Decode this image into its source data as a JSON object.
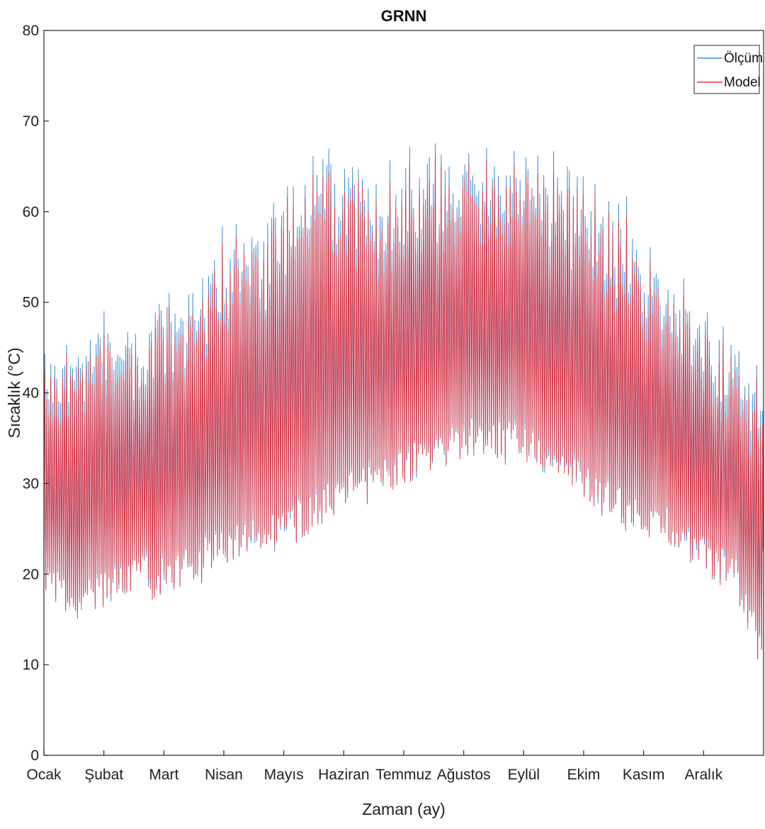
{
  "chart_data": {
    "type": "line",
    "title": "GRNN",
    "xlabel": "Zaman (ay)",
    "ylabel": "Sıcaklık (°C)",
    "ylim": [
      0,
      80
    ],
    "yticks": [
      0,
      10,
      20,
      30,
      40,
      50,
      60,
      70,
      80
    ],
    "xlim_months": [
      0,
      12
    ],
    "xticks": [
      "Ocak",
      "Şubat",
      "Mart",
      "Nisan",
      "Mayıs",
      "Haziran",
      "Temmuz",
      "Ağustos",
      "Eylül",
      "Ekim",
      "Kasım",
      "Aralık"
    ],
    "grid": false,
    "legend": "top-right",
    "sampling": "daily envelope (daily minimum and maximum), month 0 = 1 Ocak",
    "series": [
      {
        "name": "Ölçüm",
        "color": "#3d8fd6",
        "x_month": [
          0,
          0.5,
          1,
          1.5,
          2,
          2.5,
          3,
          3.5,
          4,
          4.5,
          5,
          5.5,
          6,
          6.5,
          7,
          7.5,
          8,
          8.5,
          9,
          9.5,
          10,
          10.5,
          11,
          11.5,
          12
        ],
        "daily_max": [
          46,
          45,
          50,
          47,
          52,
          53,
          58,
          60,
          64,
          68,
          67,
          65,
          66,
          67,
          67,
          67,
          66,
          66,
          64,
          62,
          58,
          52,
          48,
          47,
          43
        ],
        "daily_min": [
          19,
          17,
          18,
          20,
          20,
          21,
          23,
          24,
          25,
          27,
          29,
          30,
          32,
          34,
          35,
          35,
          34,
          32,
          30,
          28,
          26,
          25,
          22,
          20,
          11
        ]
      },
      {
        "name": "Model",
        "color": "#e8313b",
        "x_month": [
          0,
          0.5,
          1,
          1.5,
          2,
          2.5,
          3,
          3.5,
          4,
          4.5,
          5,
          5.5,
          6,
          6.5,
          7,
          7.5,
          8,
          8.5,
          9,
          9.5,
          10,
          10.5,
          11,
          11.5,
          12
        ],
        "daily_max": [
          45,
          44,
          49,
          46,
          51,
          52,
          57,
          59,
          63,
          67,
          66,
          64,
          65,
          66,
          66,
          66,
          65,
          65,
          63,
          61,
          57,
          51,
          47,
          46,
          42
        ],
        "daily_min": [
          19,
          17,
          18,
          20,
          20,
          21,
          23,
          24,
          25,
          27,
          29,
          30,
          32,
          34,
          35,
          35,
          34,
          32,
          30,
          28,
          26,
          25,
          22,
          20,
          11
        ]
      }
    ]
  }
}
